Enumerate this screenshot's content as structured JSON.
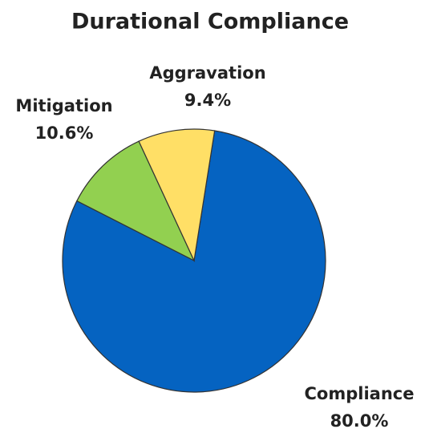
{
  "chart_data": {
    "type": "pie",
    "title": "Durational Compliance",
    "categories": [
      "Compliance",
      "Mitigation",
      "Aggravation"
    ],
    "values": [
      80.0,
      10.6,
      9.4
    ],
    "value_labels": [
      "80.0%",
      "10.6%",
      "9.4%"
    ],
    "colors": [
      "#0563c1",
      "#92d050",
      "#ffdf66"
    ]
  }
}
